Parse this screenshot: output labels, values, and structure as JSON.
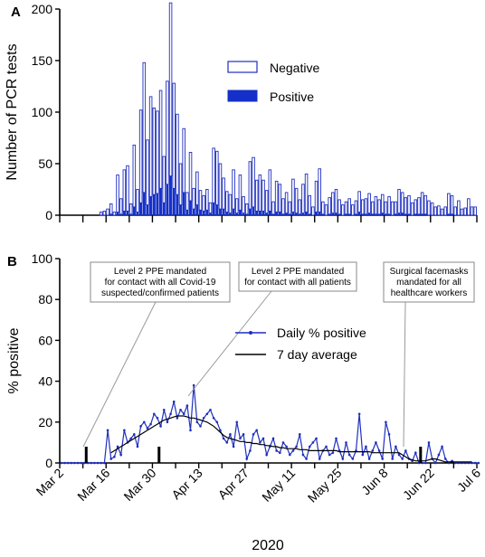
{
  "figure": {
    "xlabel": "2020"
  },
  "chart_data": [
    {
      "type": "bar",
      "panel": "A",
      "title": "",
      "ylabel": "Number of PCR tests",
      "ylim": [
        0,
        200
      ],
      "yticks": [
        0,
        50,
        100,
        150,
        200
      ],
      "xticks": [
        "Mar 2",
        "Mar 16",
        "Mar 30",
        "Apr 13",
        "Apr 27",
        "May 11",
        "May 25",
        "Jun 8",
        "Jun 22",
        "Jul 6"
      ],
      "x_start": "Mar 2",
      "legend_position": "top-right",
      "stacked": true,
      "series": [
        {
          "name": "Negative",
          "style": "open",
          "color": "#1f2fbf",
          "values": [
            0,
            0,
            0,
            0,
            0,
            0,
            0,
            0,
            0,
            0,
            0,
            0,
            3,
            4,
            6,
            10,
            3,
            36,
            15,
            40,
            44,
            10,
            60,
            22,
            90,
            126,
            63,
            97,
            84,
            80,
            95,
            45,
            100,
            168,
            102,
            78,
            40,
            62,
            17,
            47,
            20,
            32,
            19,
            15,
            20,
            10,
            53,
            52,
            44,
            30,
            20,
            18,
            38,
            14,
            34,
            16,
            10,
            46,
            48,
            30,
            35,
            30,
            22,
            40,
            12,
            30,
            27,
            15,
            20,
            12,
            32,
            24,
            14,
            28,
            37,
            18,
            8,
            30,
            42,
            12,
            10,
            16,
            20,
            23,
            14,
            10,
            12,
            15,
            10,
            13,
            20,
            14,
            15,
            19,
            12,
            17,
            14,
            18,
            12,
            17,
            13,
            12,
            23,
            20,
            16,
            18,
            12,
            14,
            16,
            21,
            18,
            14,
            12,
            8,
            9,
            6,
            8,
            20,
            18,
            8,
            14,
            6,
            7,
            16,
            8,
            8
          ]
        },
        {
          "name": "Positive",
          "style": "filled",
          "color": "#1430c8",
          "values": [
            0,
            0,
            0,
            0,
            0,
            0,
            0,
            0,
            0,
            0,
            0,
            0,
            0,
            0,
            0,
            1,
            0,
            3,
            1,
            4,
            4,
            1,
            8,
            3,
            12,
            22,
            10,
            18,
            20,
            21,
            26,
            12,
            30,
            38,
            26,
            20,
            10,
            22,
            5,
            14,
            6,
            10,
            5,
            4,
            5,
            2,
            12,
            10,
            6,
            6,
            3,
            2,
            6,
            2,
            5,
            2,
            1,
            6,
            8,
            4,
            4,
            4,
            2,
            4,
            1,
            3,
            3,
            1,
            2,
            1,
            3,
            2,
            1,
            2,
            3,
            1,
            0,
            3,
            3,
            1,
            0,
            1,
            2,
            2,
            1,
            0,
            1,
            1,
            0,
            1,
            3,
            1,
            1,
            2,
            1,
            1,
            1,
            2,
            1,
            1,
            0,
            1,
            2,
            2,
            1,
            1,
            0,
            1,
            1,
            1,
            1,
            0,
            0,
            0,
            0,
            0,
            0,
            1,
            1,
            0,
            0,
            0,
            0,
            0,
            0,
            0
          ]
        }
      ]
    },
    {
      "type": "line",
      "panel": "B",
      "title": "",
      "ylabel": "% positive",
      "ylim": [
        0,
        100
      ],
      "yticks": [
        0,
        20,
        40,
        60,
        80,
        100
      ],
      "xticks": [
        "Mar 2",
        "Mar 16",
        "Mar 30",
        "Apr 13",
        "Apr 27",
        "May 11",
        "May 25",
        "Jun 8",
        "Jun 22",
        "Jul 6"
      ],
      "x_start": "Mar 2",
      "legend_position": "top-right",
      "series": [
        {
          "name": "Daily % positive",
          "color": "#1f2fbf",
          "markers": true,
          "values": [
            0,
            0,
            0,
            0,
            0,
            0,
            0,
            0,
            0,
            0,
            0,
            0,
            0,
            0,
            16,
            2,
            3,
            8,
            4,
            16,
            10,
            12,
            14,
            8,
            18,
            20,
            17,
            19,
            24,
            22,
            18,
            26,
            20,
            24,
            30,
            22,
            26,
            24,
            28,
            16,
            38,
            20,
            18,
            22,
            24,
            26,
            22,
            20,
            16,
            12,
            10,
            14,
            8,
            20,
            12,
            14,
            2,
            6,
            14,
            16,
            10,
            12,
            4,
            8,
            12,
            6,
            5,
            10,
            8,
            4,
            6,
            8,
            14,
            4,
            2,
            8,
            10,
            12,
            2,
            6,
            8,
            4,
            5,
            12,
            6,
            2,
            10,
            4,
            2,
            6,
            24,
            4,
            8,
            2,
            6,
            10,
            6,
            2,
            20,
            14,
            2,
            8,
            4,
            2,
            6,
            2,
            1,
            5,
            0,
            0,
            0,
            10,
            2,
            0,
            4,
            8,
            2,
            0,
            1,
            0,
            0,
            0,
            0,
            0,
            0,
            0,
            0
          ]
        },
        {
          "name": "7 day average",
          "color": "#000000",
          "markers": false,
          "values": [
            null,
            null,
            null,
            null,
            null,
            null,
            null,
            null,
            null,
            null,
            null,
            null,
            null,
            null,
            null,
            5,
            6,
            7,
            8,
            9,
            10,
            11,
            12,
            13,
            14,
            15,
            16,
            17,
            18,
            19,
            20,
            21,
            21.5,
            22,
            22.5,
            23,
            23,
            23,
            22.5,
            22,
            22,
            21.5,
            21,
            20.5,
            20,
            19,
            18,
            16.5,
            15,
            13.5,
            12.5,
            12,
            11.5,
            11,
            10.5,
            10.5,
            10,
            10,
            9.5,
            9.5,
            9,
            9,
            8.5,
            8.5,
            8,
            8,
            7.5,
            7.5,
            7,
            7,
            7,
            7,
            6.5,
            6.5,
            6.5,
            6,
            6,
            6,
            6,
            6,
            6,
            6,
            6,
            6,
            5.5,
            5.5,
            5.5,
            5.5,
            5.5,
            5.5,
            5.5,
            5.5,
            5.5,
            5.5,
            5,
            5,
            5,
            5,
            5,
            5,
            5,
            5,
            5,
            4,
            3,
            2,
            1.5,
            1,
            1,
            1,
            1,
            1.5,
            2,
            2,
            1.5,
            1,
            0.5,
            0.5,
            0.5,
            0.5,
            0.5,
            0.5,
            0.5,
            0.5,
            0.5
          ]
        }
      ],
      "event_markers": [
        {
          "date": "Mar 10",
          "text": [
            "Level 2 PPE mandated",
            "for contact with all Covid-19",
            "suspected/confirmed patients"
          ]
        },
        {
          "date": "Apr 1",
          "text": [
            "Level 2 PPE mandated",
            "for contact with all patients"
          ]
        },
        {
          "date": "Jun 19",
          "text": [
            "Surgical facemasks",
            "mandated for all",
            "healthcare workers"
          ]
        }
      ]
    }
  ]
}
